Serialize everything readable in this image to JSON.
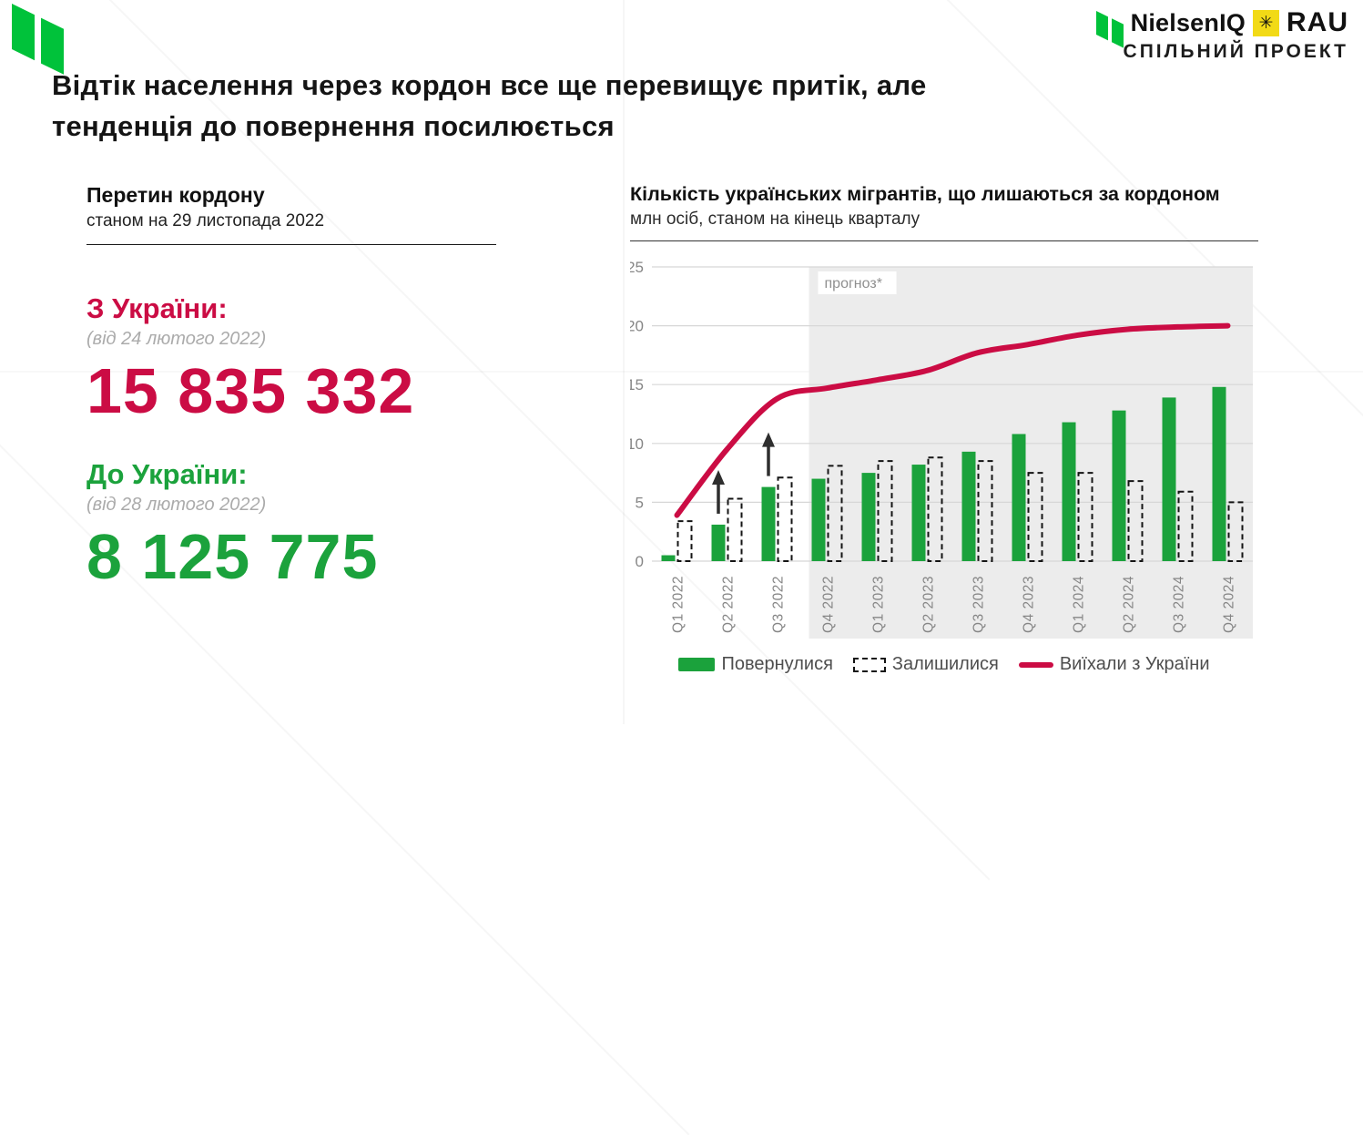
{
  "brand": {
    "nielsen_wordmark": "NielsenIQ",
    "rau_wordmark": "RAU",
    "star_glyph": "✳",
    "partnership_label": "СПІЛЬНИЙ ПРОЕКТ"
  },
  "title": {
    "line1": "Відтік населення через кордон все ще перевищує притік, але",
    "line2": "тенденція до повернення посилюється"
  },
  "border_stats": {
    "heading": "Перетин кордону",
    "subheading": "станом на 29 листопада 2022",
    "stats": [
      {
        "label": "З України:",
        "note": "(від 24 лютого 2022)",
        "value": "15 835 332",
        "color": "#CB0C44"
      },
      {
        "label": "До України:",
        "note": "(від 28 лютого 2022)",
        "value": "8 125 775",
        "color": "#1BA23C"
      }
    ]
  },
  "chart_section": {
    "heading": "Кількість українських мігрантів, що лишаються за кордоном",
    "subheading": "млн осіб, станом на кінець кварталу"
  },
  "chart_data": {
    "type": "bar+line",
    "title": "Кількість українських мігрантів, що лишаються за кордоном",
    "unit_note": "млн осіб, станом на кінець кварталу",
    "categories": [
      "Q1 2022",
      "Q2 2022",
      "Q3 2022",
      "Q4 2022",
      "Q1 2023",
      "Q2 2023",
      "Q3 2023",
      "Q4 2023",
      "Q1 2024",
      "Q2 2024",
      "Q3 2024",
      "Q4 2024"
    ],
    "series": [
      {
        "name": "Повернулися",
        "type": "bar",
        "style": "solid",
        "color": "#1BA23C",
        "values": [
          0.5,
          3.1,
          6.3,
          7.0,
          7.5,
          8.2,
          9.3,
          10.8,
          11.8,
          12.8,
          13.9,
          14.8
        ]
      },
      {
        "name": "Залишилися",
        "type": "bar",
        "style": "dashed-outline",
        "color": "#141414",
        "values": [
          3.4,
          5.3,
          7.1,
          8.1,
          8.5,
          8.8,
          8.5,
          7.5,
          7.5,
          6.8,
          5.9,
          5.0
        ]
      },
      {
        "name": "Виїхали з України",
        "type": "line",
        "color": "#CB0C44",
        "values": [
          3.9,
          9.5,
          13.8,
          14.7,
          15.4,
          16.2,
          17.7,
          18.4,
          19.2,
          19.7,
          19.9,
          20.0
        ]
      }
    ],
    "ylim": [
      0,
      25
    ],
    "yticks": [
      0,
      5,
      10,
      15,
      20,
      25
    ],
    "grid": true,
    "legend_position": "bottom",
    "forecast": {
      "label": "прогноз*",
      "from_category": "Q4 2022"
    },
    "annotations": [
      {
        "type": "up-arrow",
        "category": "Q2 2022"
      },
      {
        "type": "up-arrow",
        "category": "Q3 2022"
      }
    ]
  },
  "colors": {
    "logo_green": "#00C23A",
    "bar_green": "#1BA23C",
    "crimson": "#CB0C44",
    "rau_yellow": "#F2DA16",
    "forecast_bg": "#ECECEC",
    "grid_line": "#D7D7D7",
    "axis_text": "#868686",
    "legend_text": "#4E4E4E",
    "note_gray": "#ABABAB",
    "dashed_bar": "#141414"
  }
}
